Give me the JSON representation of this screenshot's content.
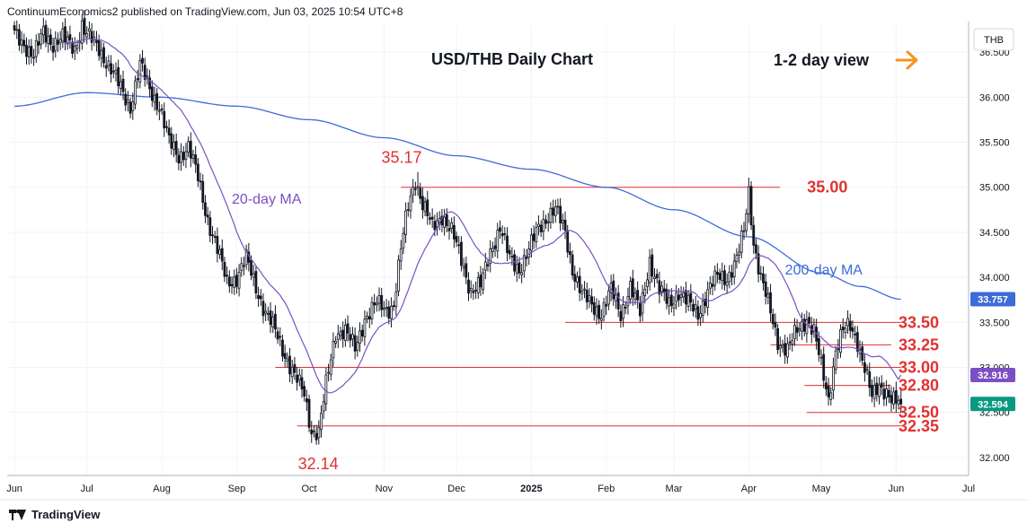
{
  "header": {
    "text": "ContinuumEconomics2 published on TradingView.com, Jun 03, 2025 10:54 UTC+8"
  },
  "footer": {
    "brand": "TradingView",
    "logo_icon": "tradingview-logo-icon"
  },
  "chart_data": {
    "type": "candlestick",
    "title": "USD/THB Daily Chart",
    "view_label": "1-2 day view",
    "view_arrow_icon": "arrow-right-icon",
    "currency_label": "THB",
    "ylim": [
      31.8,
      36.8
    ],
    "yticks": [
      32.0,
      32.5,
      33.0,
      33.5,
      34.0,
      34.5,
      35.0,
      35.5,
      36.0,
      36.5
    ],
    "ytick_labels": [
      "32.000",
      "32.500",
      "33.000",
      "33.500",
      "34.000",
      "34.500",
      "35.000",
      "35.500",
      "36.000",
      "36.500"
    ],
    "xlim": [
      -3,
      395
    ],
    "xticks": [
      {
        "label": "Jun",
        "i": 0,
        "bold": false
      },
      {
        "label": "Jul",
        "i": 30,
        "bold": false
      },
      {
        "label": "Aug",
        "i": 61,
        "bold": false
      },
      {
        "label": "Sep",
        "i": 92,
        "bold": false
      },
      {
        "label": "Oct",
        "i": 122,
        "bold": false
      },
      {
        "label": "Nov",
        "i": 153,
        "bold": false
      },
      {
        "label": "Dec",
        "i": 183,
        "bold": false
      },
      {
        "label": "2025",
        "i": 214,
        "bold": true
      },
      {
        "label": "Feb",
        "i": 245,
        "bold": false
      },
      {
        "label": "Mar",
        "i": 273,
        "bold": false
      },
      {
        "label": "Apr",
        "i": 304,
        "bold": false
      },
      {
        "label": "May",
        "i": 334,
        "bold": false
      },
      {
        "label": "Jun",
        "i": 365,
        "bold": false
      },
      {
        "label": "Jul",
        "i": 395,
        "bold": false
      }
    ],
    "colors": {
      "up": "#089981",
      "down": "#f23645",
      "candle": "#131722",
      "ma20": "#7b4fc4",
      "ma200": "#3d6bd8",
      "level": "#e0312f"
    },
    "anchors": [
      [
        0,
        36.7
      ],
      [
        4,
        36.6
      ],
      [
        8,
        36.45
      ],
      [
        12,
        36.72
      ],
      [
        16,
        36.6
      ],
      [
        20,
        36.65
      ],
      [
        25,
        36.55
      ],
      [
        28,
        36.8
      ],
      [
        30,
        36.68
      ],
      [
        35,
        36.55
      ],
      [
        40,
        36.3
      ],
      [
        45,
        36.05
      ],
      [
        48,
        35.9
      ],
      [
        52,
        36.35
      ],
      [
        56,
        36.1
      ],
      [
        60,
        35.9
      ],
      [
        64,
        35.5
      ],
      [
        68,
        35.35
      ],
      [
        72,
        35.45
      ],
      [
        76,
        35.1
      ],
      [
        80,
        34.65
      ],
      [
        84,
        34.3
      ],
      [
        88,
        33.95
      ],
      [
        92,
        34.0
      ],
      [
        96,
        34.2
      ],
      [
        100,
        33.9
      ],
      [
        104,
        33.6
      ],
      [
        108,
        33.4
      ],
      [
        112,
        33.15
      ],
      [
        116,
        32.9
      ],
      [
        120,
        32.7
      ],
      [
        123,
        32.3
      ],
      [
        126,
        32.28
      ],
      [
        129,
        32.8
      ],
      [
        133,
        33.4
      ],
      [
        137,
        33.4
      ],
      [
        141,
        33.2
      ],
      [
        145,
        33.55
      ],
      [
        150,
        33.7
      ],
      [
        154,
        33.65
      ],
      [
        157,
        33.7
      ],
      [
        160,
        34.3
      ],
      [
        163,
        34.8
      ],
      [
        166,
        35.1
      ],
      [
        169,
        34.8
      ],
      [
        173,
        34.55
      ],
      [
        177,
        34.7
      ],
      [
        181,
        34.5
      ],
      [
        185,
        34.2
      ],
      [
        189,
        33.85
      ],
      [
        193,
        33.9
      ],
      [
        197,
        34.3
      ],
      [
        201,
        34.55
      ],
      [
        205,
        34.2
      ],
      [
        209,
        34.1
      ],
      [
        213,
        34.3
      ],
      [
        217,
        34.55
      ],
      [
        221,
        34.7
      ],
      [
        224,
        34.75
      ],
      [
        228,
        34.5
      ],
      [
        231,
        34.1
      ],
      [
        235,
        33.8
      ],
      [
        239,
        33.7
      ],
      [
        243,
        33.6
      ],
      [
        247,
        33.85
      ],
      [
        251,
        33.6
      ],
      [
        255,
        33.9
      ],
      [
        259,
        33.6
      ],
      [
        263,
        34.2
      ],
      [
        267,
        33.85
      ],
      [
        271,
        33.7
      ],
      [
        275,
        33.85
      ],
      [
        279,
        33.7
      ],
      [
        283,
        33.6
      ],
      [
        287,
        33.85
      ],
      [
        291,
        34.0
      ],
      [
        295,
        34.0
      ],
      [
        299,
        34.2
      ],
      [
        302,
        34.5
      ],
      [
        304,
        34.95
      ],
      [
        306,
        34.4
      ],
      [
        309,
        34.0
      ],
      [
        312,
        33.7
      ],
      [
        316,
        33.3
      ],
      [
        320,
        33.2
      ],
      [
        324,
        33.4
      ],
      [
        328,
        33.55
      ],
      [
        331,
        33.4
      ],
      [
        334,
        33.0
      ],
      [
        337,
        32.65
      ],
      [
        340,
        33.2
      ],
      [
        343,
        33.4
      ],
      [
        346,
        33.45
      ],
      [
        349,
        33.3
      ],
      [
        352,
        33.0
      ],
      [
        355,
        32.65
      ],
      [
        358,
        32.8
      ],
      [
        361,
        32.75
      ],
      [
        363,
        32.65
      ],
      [
        365,
        32.6
      ],
      [
        367,
        32.594
      ]
    ],
    "ma200_anchors": [
      [
        0,
        35.9
      ],
      [
        30,
        36.05
      ],
      [
        60,
        36.0
      ],
      [
        92,
        35.9
      ],
      [
        122,
        35.75
      ],
      [
        153,
        35.55
      ],
      [
        183,
        35.35
      ],
      [
        214,
        35.2
      ],
      [
        245,
        35.0
      ],
      [
        273,
        34.75
      ],
      [
        304,
        34.45
      ],
      [
        334,
        34.05
      ],
      [
        350,
        33.9
      ],
      [
        367,
        33.757
      ]
    ],
    "series": [
      {
        "name": "20-day MA",
        "last_value": 32.916,
        "last_label": "32.916"
      },
      {
        "name": "200-day MA",
        "last_value": 33.757,
        "last_label": "33.757"
      }
    ],
    "last_price": {
      "value": 32.594,
      "label": "32.594"
    },
    "annotations": [
      {
        "label": "35.17",
        "value": 35.17,
        "kind": "high"
      },
      {
        "label": "32.14",
        "value": 32.14,
        "kind": "low"
      }
    ],
    "levels": [
      {
        "label": "35.00",
        "value": 35.0,
        "start_i": 160,
        "end_i": 317
      },
      {
        "label": "33.50",
        "value": 33.5,
        "start_i": 228,
        "end_i": 367
      },
      {
        "label": "33.25",
        "value": 33.25,
        "start_i": 313,
        "end_i": 363
      },
      {
        "label": "33.00",
        "value": 33.0,
        "start_i": 108,
        "end_i": 367
      },
      {
        "label": "32.80",
        "value": 32.8,
        "start_i": 327,
        "end_i": 363
      },
      {
        "label": "32.50",
        "value": 32.5,
        "start_i": 328,
        "end_i": 367
      },
      {
        "label": "32.35",
        "value": 32.35,
        "start_i": 117,
        "end_i": 367
      }
    ]
  }
}
